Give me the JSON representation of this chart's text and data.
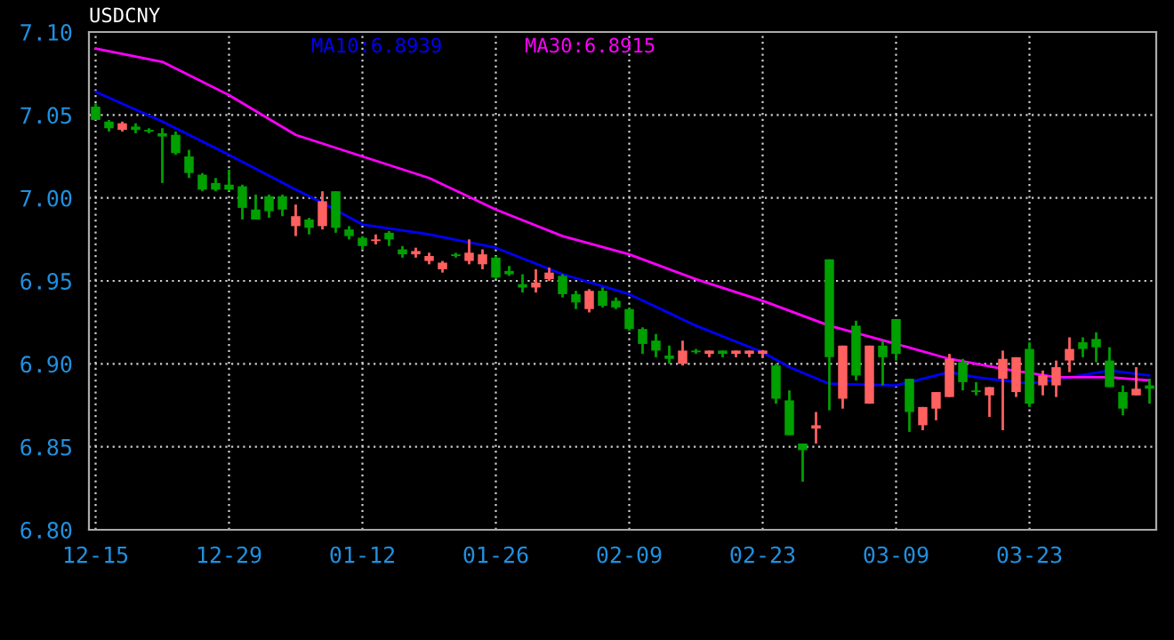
{
  "chart_data": {
    "type": "candlestick",
    "title": "USDCNY",
    "categories": [
      "12-15",
      null,
      null,
      null,
      null,
      null,
      null,
      null,
      null,
      null,
      "12-29",
      null,
      null,
      null,
      null,
      null,
      null,
      null,
      null,
      null,
      "01-12",
      null,
      null,
      null,
      null,
      null,
      null,
      null,
      null,
      null,
      "01-26",
      null,
      null,
      null,
      null,
      null,
      null,
      null,
      null,
      null,
      "02-09",
      null,
      null,
      null,
      null,
      null,
      null,
      null,
      null,
      null,
      "02-23",
      null,
      null,
      null,
      null,
      null,
      null,
      null,
      null,
      null,
      "03-09",
      null,
      null,
      null,
      null,
      null,
      null,
      null,
      null,
      null,
      "03-23",
      null,
      null,
      null,
      null,
      null,
      null,
      null,
      null,
      null
    ],
    "ohlc": [
      [
        7.055,
        7.057,
        7.047,
        7.047
      ],
      [
        7.046,
        7.047,
        7.04,
        7.042
      ],
      [
        7.041,
        7.046,
        7.04,
        7.045
      ],
      [
        7.043,
        7.045,
        7.039,
        7.041
      ],
      [
        7.041,
        7.042,
        7.039,
        7.04
      ],
      [
        7.039,
        7.042,
        7.009,
        7.037
      ],
      [
        7.038,
        7.04,
        7.026,
        7.027
      ],
      [
        7.025,
        7.029,
        7.012,
        7.015
      ],
      [
        7.014,
        7.015,
        7.004,
        7.005
      ],
      [
        7.009,
        7.012,
        7.004,
        7.005
      ],
      [
        7.008,
        7.017,
        7.004,
        7.005
      ],
      [
        7.007,
        7.008,
        6.987,
        6.994
      ],
      [
        6.993,
        7.002,
        6.987,
        6.987
      ],
      [
        7.001,
        7.002,
        6.988,
        6.992
      ],
      [
        7.001,
        7.002,
        6.989,
        6.993
      ],
      [
        6.983,
        6.996,
        6.977,
        6.989
      ],
      [
        6.987,
        6.988,
        6.978,
        6.982
      ],
      [
        6.983,
        7.004,
        6.981,
        6.998
      ],
      [
        7.004,
        7.004,
        6.979,
        6.982
      ],
      [
        6.981,
        6.983,
        6.975,
        6.977
      ],
      [
        6.976,
        6.977,
        6.969,
        6.971
      ],
      [
        6.974,
        6.978,
        6.972,
        6.975
      ],
      [
        6.979,
        6.98,
        6.971,
        6.975
      ],
      [
        6.969,
        6.971,
        6.964,
        6.966
      ],
      [
        6.966,
        6.97,
        6.964,
        6.968
      ],
      [
        6.962,
        6.967,
        6.96,
        6.965
      ],
      [
        6.957,
        6.962,
        6.955,
        6.961
      ],
      [
        6.966,
        6.967,
        6.964,
        6.965
      ],
      [
        6.962,
        6.975,
        6.96,
        6.967
      ],
      [
        6.96,
        6.969,
        6.957,
        6.966
      ],
      [
        6.964,
        6.965,
        6.951,
        6.952
      ],
      [
        6.956,
        6.959,
        6.953,
        6.954
      ],
      [
        6.948,
        6.954,
        6.943,
        6.946
      ],
      [
        6.946,
        6.957,
        6.943,
        6.949
      ],
      [
        6.951,
        6.958,
        6.95,
        6.955
      ],
      [
        6.953,
        6.954,
        6.94,
        6.942
      ],
      [
        6.942,
        6.944,
        6.933,
        6.937
      ],
      [
        6.933,
        6.945,
        6.931,
        6.944
      ],
      [
        6.944,
        6.946,
        6.934,
        6.935
      ],
      [
        6.938,
        6.94,
        6.933,
        6.934
      ],
      [
        6.933,
        6.934,
        6.92,
        6.921
      ],
      [
        6.921,
        6.922,
        6.906,
        6.912
      ],
      [
        6.914,
        6.918,
        6.904,
        6.908
      ],
      [
        6.905,
        6.911,
        6.9,
        6.903
      ],
      [
        6.9,
        6.914,
        6.899,
        6.908
      ],
      [
        6.908,
        6.909,
        6.906,
        6.907
      ],
      [
        6.906,
        6.908,
        6.904,
        6.908
      ],
      [
        6.908,
        6.908,
        6.904,
        6.906
      ],
      [
        6.906,
        6.908,
        6.904,
        6.908
      ],
      [
        6.906,
        6.908,
        6.904,
        6.908
      ],
      [
        6.906,
        6.908,
        6.904,
        6.908
      ],
      [
        6.899,
        6.9,
        6.876,
        6.879
      ],
      [
        6.878,
        6.884,
        6.857,
        6.857
      ],
      [
        6.852,
        6.852,
        6.829,
        6.848
      ],
      [
        6.861,
        6.871,
        6.852,
        6.863
      ],
      [
        6.963,
        6.963,
        6.872,
        6.904
      ],
      [
        6.879,
        6.911,
        6.873,
        6.911
      ],
      [
        6.923,
        6.926,
        6.89,
        6.893
      ],
      [
        6.876,
        6.911,
        6.876,
        6.911
      ],
      [
        6.911,
        6.914,
        6.887,
        6.904
      ],
      [
        6.927,
        6.927,
        6.902,
        6.906
      ],
      [
        6.891,
        6.891,
        6.859,
        6.871
      ],
      [
        6.863,
        6.874,
        6.86,
        6.874
      ],
      [
        6.873,
        6.883,
        6.866,
        6.883
      ],
      [
        6.88,
        6.906,
        6.88,
        6.903
      ],
      [
        6.901,
        6.903,
        6.884,
        6.889
      ],
      [
        6.884,
        6.889,
        6.881,
        6.883
      ],
      [
        6.881,
        6.886,
        6.868,
        6.886
      ],
      [
        6.891,
        6.908,
        6.86,
        6.903
      ],
      [
        6.883,
        6.904,
        6.88,
        6.904
      ],
      [
        6.909,
        6.913,
        6.874,
        6.876
      ],
      [
        6.887,
        6.896,
        6.881,
        6.893
      ],
      [
        6.887,
        6.902,
        6.88,
        6.898
      ],
      [
        6.902,
        6.916,
        6.895,
        6.909
      ],
      [
        6.913,
        6.916,
        6.904,
        6.909
      ],
      [
        6.915,
        6.919,
        6.901,
        6.91
      ],
      [
        6.902,
        6.91,
        6.886,
        6.886
      ],
      [
        6.883,
        6.887,
        6.869,
        6.873
      ],
      [
        6.881,
        6.898,
        6.881,
        6.885
      ],
      [
        6.887,
        6.891,
        6.876,
        6.885
      ]
    ],
    "colors": [
      "#00a000",
      "#00a000",
      "#ff6060",
      "#00a000",
      "#00a000",
      "#00a000",
      "#00a000",
      "#00a000",
      "#00a000",
      "#00a000",
      "#00a000",
      "#00a000",
      "#00a000",
      "#00a000",
      "#00a000",
      "#ff6060",
      "#00a000",
      "#ff6060",
      "#00a000",
      "#00a000",
      "#00a000",
      "#ff6060",
      "#00a000",
      "#00a000",
      "#ff6060",
      "#ff6060",
      "#ff6060",
      "#00a000",
      "#ff6060",
      "#ff6060",
      "#00a000",
      "#00a000",
      "#00a000",
      "#ff6060",
      "#ff6060",
      "#00a000",
      "#00a000",
      "#ff6060",
      "#00a000",
      "#00a000",
      "#00a000",
      "#00a000",
      "#00a000",
      "#00a000",
      "#ff6060",
      "#00a000",
      "#ff6060",
      "#00a000",
      "#ff6060",
      "#ff6060",
      "#ff6060",
      "#00a000",
      "#00a000",
      "#00a000",
      "#ff6060",
      "#00a000",
      "#ff6060",
      "#00a000",
      "#ff6060",
      "#00a000",
      "#00a000",
      "#00a000",
      "#ff6060",
      "#ff6060",
      "#ff6060",
      "#00a000",
      "#00a000",
      "#ff6060",
      "#ff6060",
      "#ff6060",
      "#00a000",
      "#ff6060",
      "#ff6060",
      "#ff6060",
      "#00a000",
      "#00a000",
      "#00a000",
      "#00a000",
      "#ff6060",
      "#00a000"
    ],
    "series": [
      {
        "name": "MA10:6.8939",
        "type": "line",
        "color": "#0000ff",
        "values": [
          7.064,
          null,
          null,
          null,
          null,
          7.046,
          null,
          null,
          null,
          null,
          7.026,
          null,
          null,
          null,
          null,
          7.005,
          null,
          6.997,
          null,
          null,
          6.984,
          null,
          null,
          null,
          null,
          6.978,
          null,
          null,
          null,
          null,
          6.97,
          null,
          null,
          null,
          null,
          6.954,
          null,
          null,
          null,
          null,
          6.942,
          null,
          null,
          null,
          null,
          6.923,
          null,
          null,
          null,
          null,
          6.907,
          null,
          6.898,
          null,
          null,
          6.888,
          null,
          null,
          null,
          null,
          6.887,
          null,
          null,
          null,
          6.895,
          null,
          6.892,
          null,
          null,
          null,
          6.888,
          null,
          null,
          6.892,
          null,
          null,
          6.896,
          null,
          null,
          6.893
        ]
      },
      {
        "name": "MA30:6.8915",
        "type": "line",
        "color": "#ff00ff",
        "values": [
          7.09,
          null,
          null,
          null,
          null,
          7.082,
          null,
          null,
          null,
          null,
          7.062,
          null,
          null,
          null,
          null,
          7.038,
          null,
          null,
          null,
          null,
          7.025,
          null,
          null,
          null,
          null,
          7.012,
          null,
          null,
          null,
          null,
          6.993,
          null,
          null,
          null,
          null,
          6.977,
          null,
          null,
          null,
          null,
          6.966,
          null,
          null,
          null,
          null,
          6.951,
          null,
          null,
          null,
          null,
          6.938,
          null,
          null,
          null,
          null,
          6.923,
          null,
          null,
          null,
          null,
          6.912,
          null,
          null,
          null,
          6.903,
          null,
          null,
          null,
          6.897,
          null,
          null,
          null,
          6.892,
          null,
          null,
          null,
          6.892,
          null,
          null,
          6.89
        ]
      }
    ],
    "ylim": [
      6.8,
      7.1
    ],
    "yticks": [
      {
        "value": 6.8,
        "label": "6.80"
      },
      {
        "value": 6.85,
        "label": "6.85"
      },
      {
        "value": 6.9,
        "label": "6.90"
      },
      {
        "value": 6.95,
        "label": "6.95"
      },
      {
        "value": 7.0,
        "label": "7.00"
      },
      {
        "value": 7.05,
        "label": "7.05"
      },
      {
        "value": 7.1,
        "label": "7.10"
      }
    ],
    "grid": true
  }
}
